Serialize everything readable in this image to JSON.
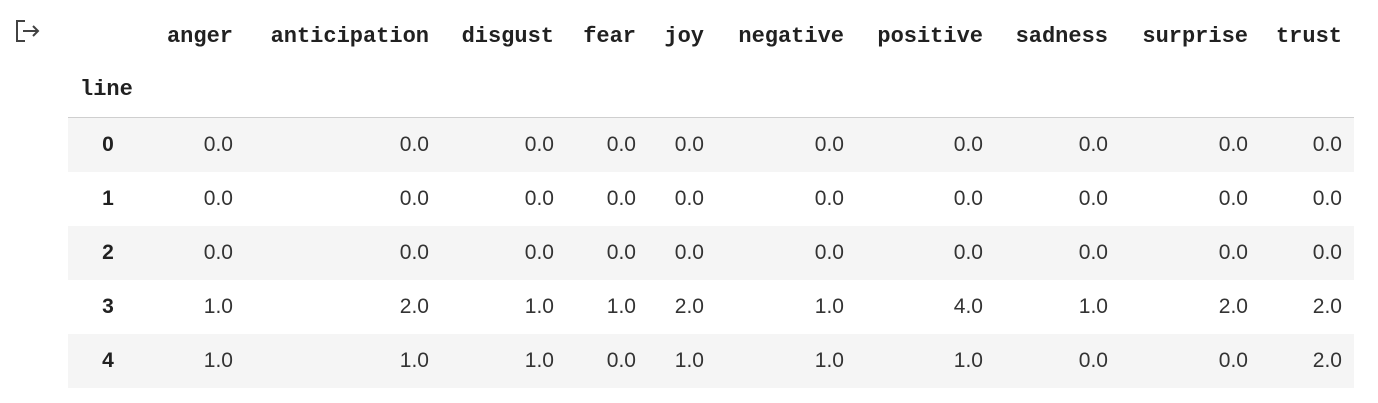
{
  "output": {
    "icon": "output-arrow-icon"
  },
  "table": {
    "index_name": "line",
    "columns": [
      "anger",
      "anticipation",
      "disgust",
      "fear",
      "joy",
      "negative",
      "positive",
      "sadness",
      "surprise",
      "trust"
    ],
    "rows": [
      {
        "index": "0",
        "values": [
          "0.0",
          "0.0",
          "0.0",
          "0.0",
          "0.0",
          "0.0",
          "0.0",
          "0.0",
          "0.0",
          "0.0"
        ]
      },
      {
        "index": "1",
        "values": [
          "0.0",
          "0.0",
          "0.0",
          "0.0",
          "0.0",
          "0.0",
          "0.0",
          "0.0",
          "0.0",
          "0.0"
        ]
      },
      {
        "index": "2",
        "values": [
          "0.0",
          "0.0",
          "0.0",
          "0.0",
          "0.0",
          "0.0",
          "0.0",
          "0.0",
          "0.0",
          "0.0"
        ]
      },
      {
        "index": "3",
        "values": [
          "1.0",
          "2.0",
          "1.0",
          "1.0",
          "2.0",
          "1.0",
          "4.0",
          "1.0",
          "2.0",
          "2.0"
        ]
      },
      {
        "index": "4",
        "values": [
          "1.0",
          "1.0",
          "1.0",
          "0.0",
          "1.0",
          "1.0",
          "1.0",
          "0.0",
          "0.0",
          "2.0"
        ]
      }
    ]
  }
}
